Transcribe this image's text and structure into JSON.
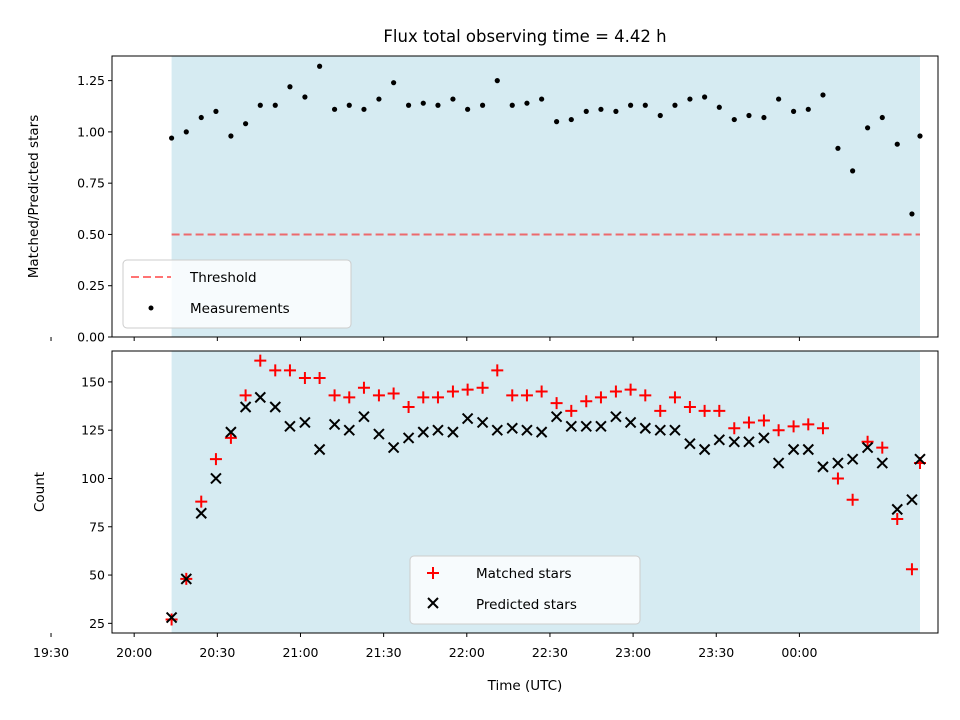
{
  "chart_data": [
    {
      "type": "scatter",
      "title": "Flux total observing time = 4.42 h",
      "xlabel": "",
      "ylabel": "Matched/Predicted stars",
      "ylim": [
        0,
        1.37
      ],
      "yticks": [
        0.0,
        0.25,
        0.5,
        0.75,
        1.0,
        1.25
      ],
      "ytick_labels": [
        "0.00",
        "0.25",
        "0.50",
        "0.75",
        "1.00",
        "1.25"
      ],
      "shaded_span": [
        133.5,
        403.5
      ],
      "threshold": 0.5,
      "legend": {
        "placement": "lower-left",
        "entries": [
          "Threshold",
          "Measurements"
        ]
      },
      "series": [
        {
          "name": "Measurements",
          "x": [
            133.5,
            138.8,
            144.2,
            149.5,
            154.9,
            160.2,
            165.5,
            170.9,
            176.2,
            181.6,
            186.9,
            192.3,
            197.6,
            202.9,
            208.3,
            213.6,
            219.0,
            224.3,
            229.6,
            235.0,
            240.3,
            245.7,
            251.0,
            256.4,
            261.7,
            267.0,
            272.4,
            277.7,
            283.1,
            288.4,
            293.8,
            299.1,
            304.4,
            309.8,
            315.1,
            320.5,
            325.8,
            331.1,
            336.5,
            341.8,
            347.2,
            352.5,
            357.9,
            363.2,
            368.5,
            373.9,
            379.2,
            384.6,
            389.9,
            395.3,
            400.6,
            403.5
          ],
          "values": [
            0.97,
            1.0,
            1.07,
            1.1,
            0.98,
            1.04,
            1.13,
            1.13,
            1.22,
            1.17,
            1.32,
            1.11,
            1.13,
            1.11,
            1.16,
            1.24,
            1.13,
            1.14,
            1.13,
            1.16,
            1.11,
            1.13,
            1.25,
            1.13,
            1.14,
            1.16,
            1.05,
            1.06,
            1.1,
            1.11,
            1.1,
            1.13,
            1.13,
            1.08,
            1.13,
            1.16,
            1.17,
            1.12,
            1.06,
            1.08,
            1.07,
            1.16,
            1.1,
            1.11,
            1.18,
            0.92,
            0.81,
            1.02,
            1.07,
            0.94,
            0.6,
            0.98
          ]
        }
      ]
    },
    {
      "type": "scatter",
      "title": "",
      "xlabel": "Time (UTC)",
      "ylabel": "Count",
      "xlim": [
        112,
        410
      ],
      "ylim": [
        20,
        166
      ],
      "xticks": [
        90,
        120,
        150,
        180,
        210,
        240,
        270,
        300,
        330,
        360
      ],
      "xtick_labels": [
        "19:30",
        "20:00",
        "20:30",
        "21:00",
        "21:30",
        "22:00",
        "22:30",
        "23:00",
        "23:30",
        "00:00"
      ],
      "yticks": [
        25,
        50,
        75,
        100,
        125,
        150
      ],
      "ytick_labels": [
        "25",
        "50",
        "75",
        "100",
        "125",
        "150"
      ],
      "shaded_span": [
        133.5,
        403.5
      ],
      "legend": {
        "placement": "lower-center",
        "entries": [
          "Matched stars",
          "Predicted stars"
        ]
      },
      "series": [
        {
          "name": "Matched stars",
          "x": [
            133.5,
            138.8,
            144.2,
            149.5,
            154.9,
            160.2,
            165.5,
            170.9,
            176.2,
            181.6,
            186.9,
            192.3,
            197.6,
            202.9,
            208.3,
            213.6,
            219.0,
            224.3,
            229.6,
            235.0,
            240.3,
            245.7,
            251.0,
            256.4,
            261.7,
            267.0,
            272.4,
            277.7,
            283.1,
            288.4,
            293.8,
            299.1,
            304.4,
            309.8,
            315.1,
            320.5,
            325.8,
            331.1,
            336.5,
            341.8,
            347.2,
            352.5,
            357.9,
            363.2,
            368.5,
            373.9,
            379.2,
            384.6,
            389.9,
            395.3,
            400.6,
            403.5
          ],
          "values": [
            27,
            48,
            88,
            110,
            121,
            143,
            161,
            156,
            156,
            152,
            152,
            143,
            142,
            147,
            143,
            144,
            137,
            142,
            142,
            145,
            146,
            147,
            156,
            143,
            143,
            145,
            139,
            135,
            140,
            142,
            145,
            146,
            143,
            135,
            142,
            137,
            135,
            135,
            126,
            129,
            130,
            125,
            127,
            128,
            126,
            100,
            89,
            119,
            116,
            79,
            53,
            108
          ]
        },
        {
          "name": "Predicted stars",
          "x": [
            133.5,
            138.8,
            144.2,
            149.5,
            154.9,
            160.2,
            165.5,
            170.9,
            176.2,
            181.6,
            186.9,
            192.3,
            197.6,
            202.9,
            208.3,
            213.6,
            219.0,
            224.3,
            229.6,
            235.0,
            240.3,
            245.7,
            251.0,
            256.4,
            261.7,
            267.0,
            272.4,
            277.7,
            283.1,
            288.4,
            293.8,
            299.1,
            304.4,
            309.8,
            315.1,
            320.5,
            325.8,
            331.1,
            336.5,
            341.8,
            347.2,
            352.5,
            357.9,
            363.2,
            368.5,
            373.9,
            379.2,
            384.6,
            389.9,
            395.3,
            400.6,
            403.5
          ],
          "values": [
            28,
            48,
            82,
            100,
            124,
            137,
            142,
            137,
            127,
            129,
            115,
            128,
            125,
            132,
            123,
            116,
            121,
            124,
            125,
            124,
            131,
            129,
            125,
            126,
            125,
            124,
            132,
            127,
            127,
            127,
            132,
            129,
            126,
            125,
            125,
            118,
            115,
            120,
            119,
            119,
            121,
            108,
            115,
            115,
            106,
            108,
            110,
            116,
            108,
            84,
            89,
            110
          ]
        }
      ]
    }
  ]
}
